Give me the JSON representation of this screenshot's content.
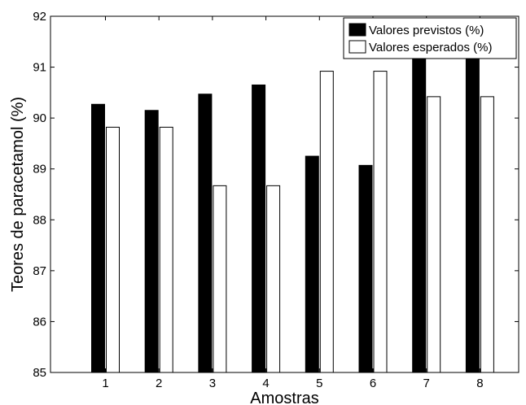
{
  "chart_data": {
    "type": "bar",
    "categories": [
      "1",
      "2",
      "3",
      "4",
      "5",
      "6",
      "7",
      "8"
    ],
    "series": [
      {
        "name": "Valores previstos (%)",
        "values": [
          90.27,
          90.15,
          90.47,
          90.65,
          89.25,
          89.07,
          91.17,
          91.17
        ],
        "color": "#000000"
      },
      {
        "name": "Valores esperados (%)",
        "values": [
          89.82,
          89.82,
          88.67,
          88.67,
          90.92,
          90.92,
          90.42,
          90.42
        ],
        "color": "#ffffff"
      }
    ],
    "xlabel": "Amostras",
    "ylabel": "Teores de paracetamol (%)",
    "ylim": [
      85,
      92
    ],
    "yticks": [
      "85",
      "86",
      "87",
      "88",
      "89",
      "90",
      "91",
      "92"
    ],
    "grid": false,
    "legend_position": "top-right"
  }
}
